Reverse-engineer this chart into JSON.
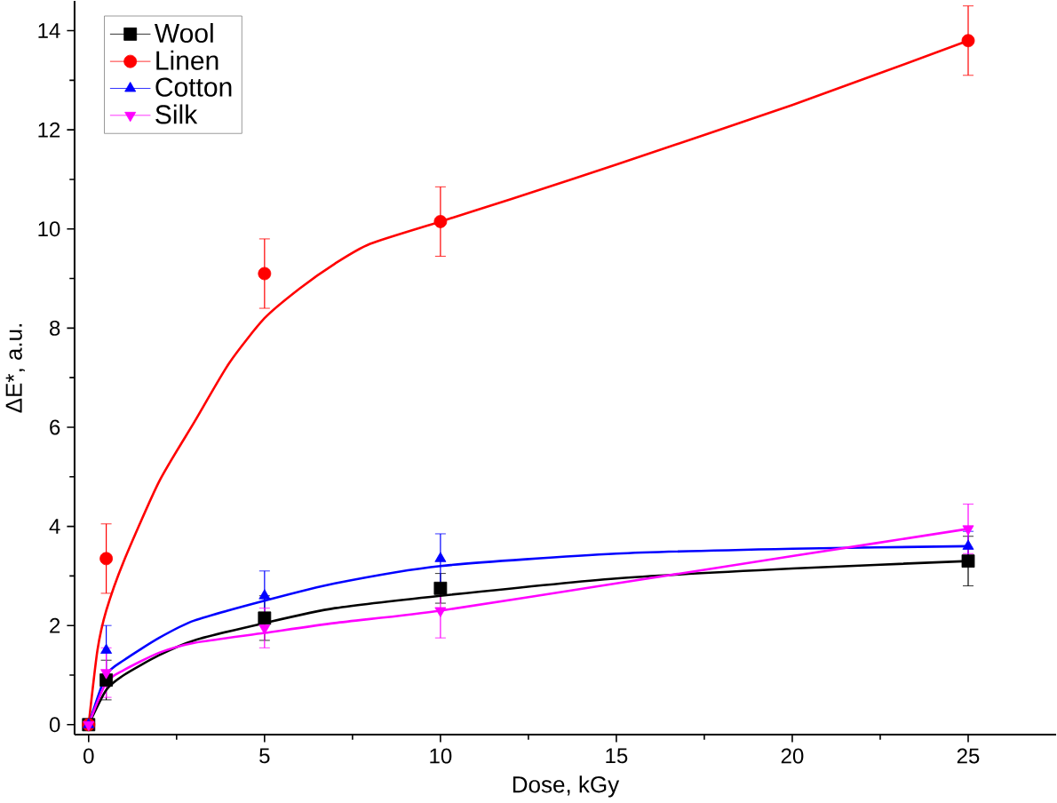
{
  "chart_data": {
    "type": "scatter",
    "xlabel": "Dose, kGy",
    "ylabel": "ΔE*, a.u.",
    "xlim": [
      -0.4,
      27.5
    ],
    "xticks": [
      0,
      5,
      10,
      15,
      20,
      25
    ],
    "ylim": [
      -0.2,
      14.6
    ],
    "yticks": [
      0,
      2,
      4,
      6,
      8,
      10,
      12,
      14
    ],
    "grid": false,
    "legend": "top left",
    "series": [
      {
        "name": "Wool",
        "color": "#000000",
        "marker": "square",
        "x": [
          0,
          0.5,
          5,
          10,
          25
        ],
        "values": [
          0,
          0.9,
          2.15,
          2.75,
          3.3
        ],
        "errors": [
          0.1,
          0.4,
          0.45,
          0.3,
          0.5
        ]
      },
      {
        "name": "Linen",
        "color": "#ff0000",
        "marker": "circle",
        "x": [
          0,
          0.5,
          5,
          10,
          25
        ],
        "values": [
          0,
          3.35,
          9.1,
          10.15,
          13.8
        ],
        "errors": [
          0.1,
          0.7,
          0.7,
          0.7,
          0.7
        ]
      },
      {
        "name": "Cotton",
        "color": "#0000ff",
        "marker": "triangle",
        "x": [
          0,
          0.5,
          5,
          10,
          25
        ],
        "values": [
          0,
          1.5,
          2.6,
          3.35,
          3.6
        ],
        "errors": [
          0.1,
          0.5,
          0.5,
          0.5,
          0.3
        ]
      },
      {
        "name": "Silk",
        "color": "#ff00ff",
        "marker": "triangle-down",
        "x": [
          0,
          0.5,
          5,
          10,
          25
        ],
        "values": [
          0,
          1.05,
          1.95,
          2.3,
          3.95
        ],
        "errors": [
          0.1,
          0.5,
          0.4,
          0.55,
          0.5
        ]
      },
      {
        "type": "line",
        "color": "#000000",
        "marker": "none",
        "x": [
          0,
          0.5,
          1,
          2,
          3,
          5,
          7,
          10,
          15,
          20,
          25
        ],
        "values": [
          0,
          0.7,
          1.0,
          1.4,
          1.7,
          2.05,
          2.35,
          2.6,
          2.95,
          3.15,
          3.3
        ]
      },
      {
        "type": "line",
        "color": "#ff0000",
        "marker": "none",
        "x": [
          0,
          0.25,
          0.5,
          1,
          2,
          3,
          4,
          5,
          6,
          7,
          8,
          10,
          12,
          15,
          20,
          25
        ],
        "values": [
          0,
          1.5,
          2.3,
          3.3,
          4.9,
          6.1,
          7.3,
          8.2,
          8.8,
          9.3,
          9.7,
          10.15,
          10.6,
          11.3,
          12.5,
          13.8
        ]
      },
      {
        "type": "line",
        "color": "#0000ff",
        "marker": "none",
        "x": [
          0,
          0.5,
          1,
          2,
          3,
          5,
          7,
          10,
          15,
          20,
          25
        ],
        "values": [
          0,
          1.0,
          1.3,
          1.75,
          2.1,
          2.5,
          2.85,
          3.2,
          3.45,
          3.55,
          3.6
        ]
      },
      {
        "type": "line",
        "color": "#ff00ff",
        "marker": "none",
        "x": [
          0,
          0.5,
          1,
          2,
          3,
          5,
          7,
          10,
          15,
          20,
          25
        ],
        "values": [
          0,
          0.85,
          1.1,
          1.45,
          1.65,
          1.85,
          2.05,
          2.3,
          2.85,
          3.4,
          3.95
        ]
      }
    ]
  }
}
